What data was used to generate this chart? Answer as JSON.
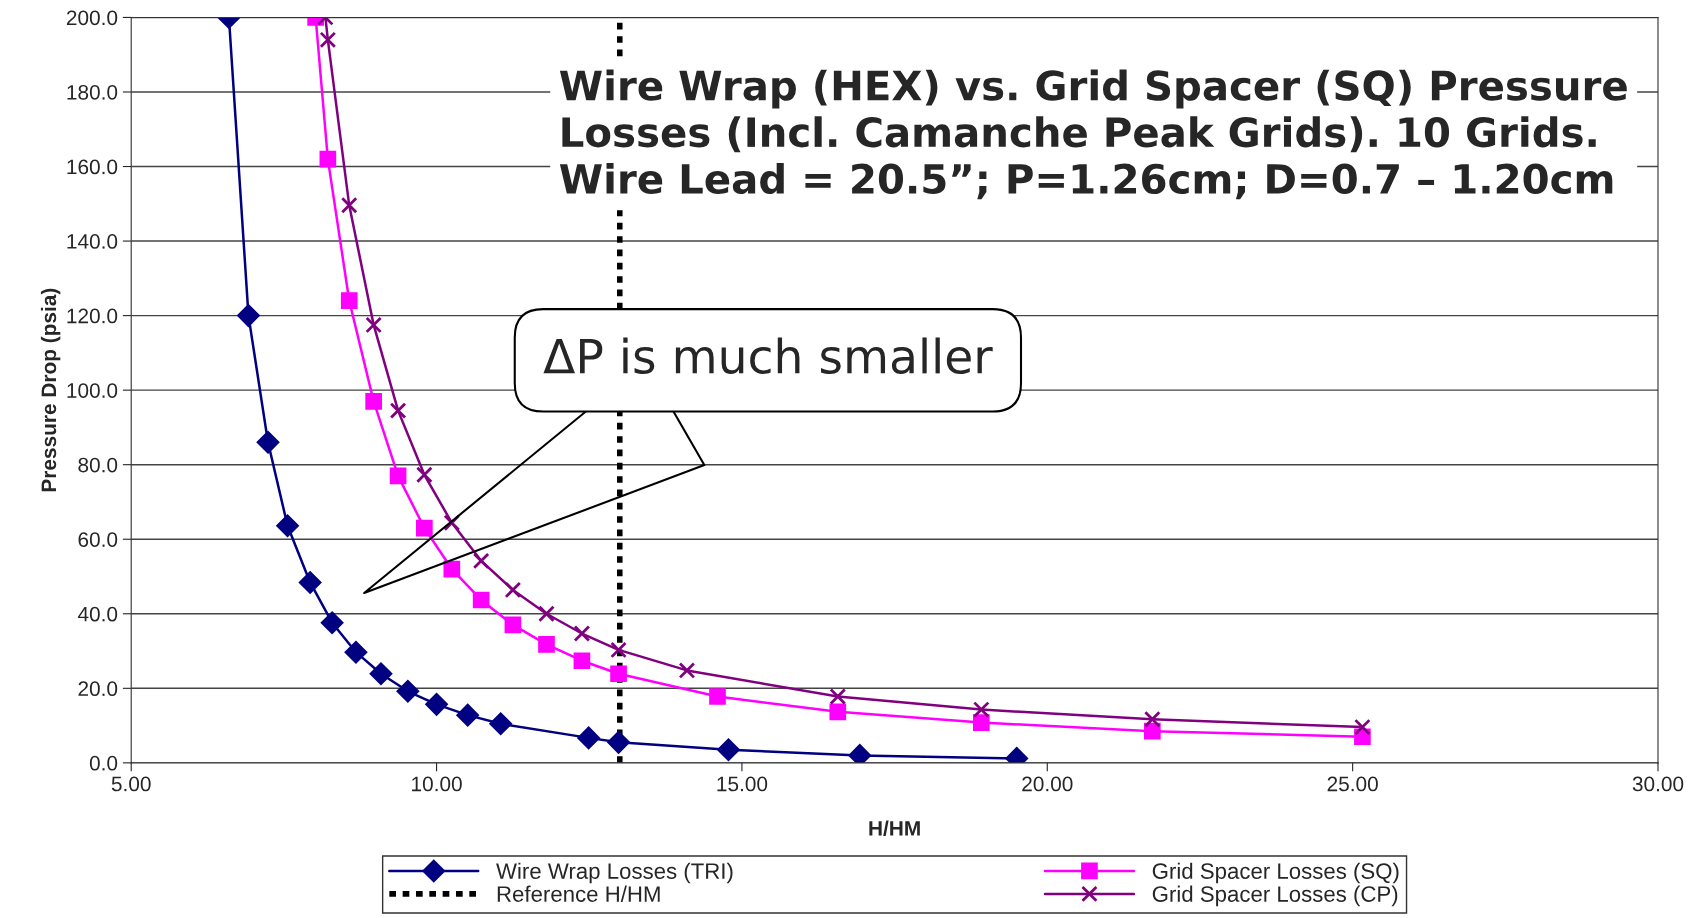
{
  "chart_data": {
    "type": "line",
    "title": "Wire Wrap (HEX) vs. Grid Spacer (SQ) Pressure Losses (Incl. Camanche Peak Grids). 10 Grids. Wire Lead = 20.5”; P=1.26cm; D=0.7 – 1.20cm",
    "xlabel": "H/HM",
    "ylabel": "Pressure Drop (psia)",
    "series": [
      {
        "name": "Wire Wrap Losses (TRI)",
        "color": "#000080",
        "marker": "diamond",
        "x": [
          6.6,
          6.92,
          7.24,
          7.56,
          7.93,
          8.29,
          8.68,
          9.09,
          9.53,
          10.0,
          10.51,
          11.05,
          12.49,
          12.98,
          14.78,
          16.93,
          19.5
        ],
        "values": [
          200,
          120,
          86,
          63.6,
          48.4,
          37.6,
          29.7,
          23.9,
          19.2,
          15.7,
          12.8,
          10.5,
          6.7,
          5.5,
          3.5,
          2.0,
          1.2
        ]
      },
      {
        "name": "Grid Spacer Losses (SQ)",
        "color": "#ff00ff",
        "marker": "square",
        "x": [
          8.02,
          8.22,
          8.57,
          8.97,
          9.37,
          9.8,
          10.25,
          10.73,
          11.25,
          11.8,
          12.38,
          12.98,
          14.6,
          16.57,
          18.92,
          21.72,
          25.16
        ],
        "values": [
          200,
          162,
          124,
          97,
          77,
          63,
          52,
          43.7,
          37,
          31.8,
          27.4,
          23.9,
          17.8,
          13.7,
          10.8,
          8.5,
          7.0
        ]
      },
      {
        "name": "Grid Spacer Losses (CP)",
        "color": "#800080",
        "marker": "cross",
        "x": [
          8.18,
          8.22,
          8.57,
          8.97,
          9.37,
          9.8,
          10.25,
          10.73,
          11.25,
          11.8,
          12.38,
          12.98,
          14.1,
          16.57,
          18.92,
          21.72,
          25.16
        ],
        "values": [
          200,
          194,
          149.6,
          117.5,
          94.5,
          77.3,
          64.4,
          54.2,
          46.4,
          40,
          34.7,
          30.3,
          24.8,
          17.8,
          14.3,
          11.7,
          9.6
        ]
      }
    ],
    "ref_lines": [
      {
        "axis": "x",
        "value": 13,
        "label": "Reference H/HM",
        "color": "#000000",
        "line_style": "dashed"
      }
    ],
    "annotations": [
      "ΔP is much smaller"
    ],
    "xlim": [
      5,
      30
    ],
    "xticks": [
      {
        "value": 5,
        "label": "5.00"
      },
      {
        "value": 10,
        "label": "10.00"
      },
      {
        "value": 15,
        "label": "15.00"
      },
      {
        "value": 20,
        "label": "20.00"
      },
      {
        "value": 25,
        "label": "25.00"
      },
      {
        "value": 30,
        "label": "30.00"
      }
    ],
    "ylim": [
      0,
      200
    ],
    "yticks": [
      {
        "value": 0,
        "label": "0.0"
      },
      {
        "value": 20,
        "label": "20.0"
      },
      {
        "value": 40,
        "label": "40.0"
      },
      {
        "value": 60,
        "label": "60.0"
      },
      {
        "value": 80,
        "label": "80.0"
      },
      {
        "value": 100,
        "label": "100.0"
      },
      {
        "value": 120,
        "label": "120.0"
      },
      {
        "value": 140,
        "label": "140.0"
      },
      {
        "value": 160,
        "label": "160.0"
      },
      {
        "value": 180,
        "label": "180.0"
      },
      {
        "value": 200,
        "label": "200.0"
      }
    ],
    "grid": "y",
    "legend": "bottom",
    "line_style": "solid"
  }
}
